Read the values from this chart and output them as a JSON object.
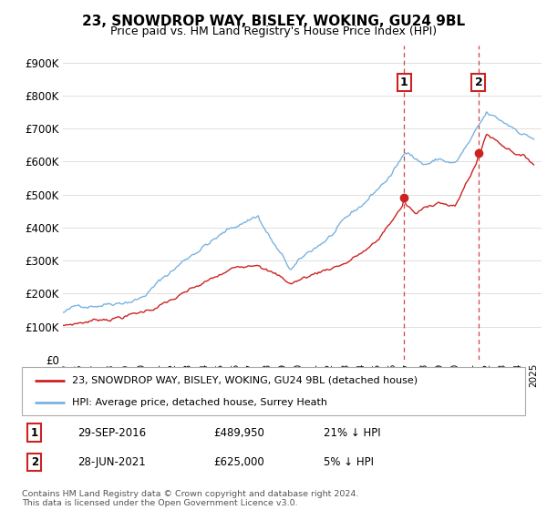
{
  "title": "23, SNOWDROP WAY, BISLEY, WOKING, GU24 9BL",
  "subtitle": "Price paid vs. HM Land Registry's House Price Index (HPI)",
  "ylabel_ticks": [
    "£0",
    "£100K",
    "£200K",
    "£300K",
    "£400K",
    "£500K",
    "£600K",
    "£700K",
    "£800K",
    "£900K"
  ],
  "ytick_vals": [
    0,
    100000,
    200000,
    300000,
    400000,
    500000,
    600000,
    700000,
    800000,
    900000
  ],
  "ylim": [
    0,
    950000
  ],
  "xlim_start": 1995.0,
  "xlim_end": 2025.5,
  "hpi_color": "#7ab3e0",
  "price_color": "#cc2222",
  "marker1_date": 2016.75,
  "marker1_price": 489950,
  "marker2_date": 2021.49,
  "marker2_price": 625000,
  "legend_entry1": "23, SNOWDROP WAY, BISLEY, WOKING, GU24 9BL (detached house)",
  "legend_entry2": "HPI: Average price, detached house, Surrey Heath",
  "footnote": "Contains HM Land Registry data © Crown copyright and database right 2024.\nThis data is licensed under the Open Government Licence v3.0.",
  "table_row1": [
    "1",
    "29-SEP-2016",
    "£489,950",
    "21% ↓ HPI"
  ],
  "table_row2": [
    "2",
    "28-JUN-2021",
    "£625,000",
    "5% ↓ HPI"
  ],
  "dashed_vline_color": "#cc2222",
  "background_color": "#ffffff",
  "grid_color": "#e0e0e0",
  "box_edge_color": "#cc2222"
}
